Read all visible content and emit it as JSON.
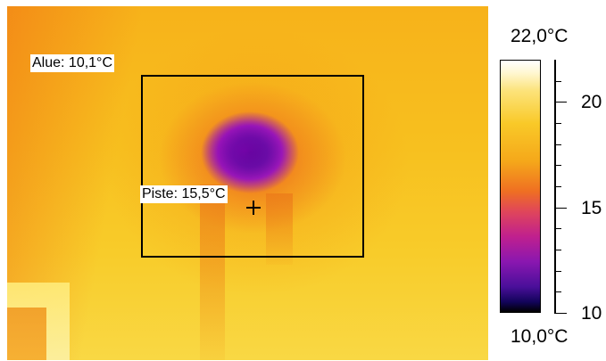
{
  "thermal_image": {
    "area_label": "Alue: 10,1°C",
    "spot_label": "Piste: 15,5°C"
  },
  "scale": {
    "max_label": "22,0°C",
    "min_label": "10,0°C",
    "ticks": [
      "20",
      "15",
      "10"
    ],
    "colors": {
      "hot": "#ffffff",
      "warm": "#f9c928",
      "mid": "#ef6f22",
      "cool": "#c0208e",
      "cold": "#12045a"
    }
  }
}
